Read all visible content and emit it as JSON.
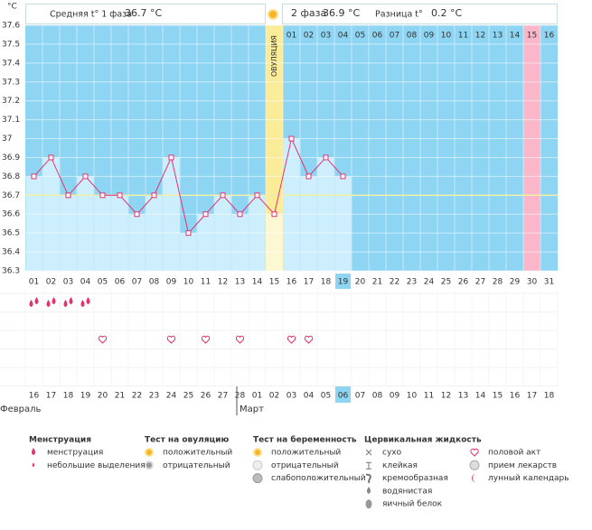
{
  "header": {
    "unit": "°C",
    "phase1_label": "Средняя t° 1 фаза",
    "phase1_value": "36.7 °C",
    "phase2_label": "2 фаза",
    "phase2_value": "36.9 °C",
    "diff_label": "Разница t°",
    "diff_value": "0.2 °C"
  },
  "chart_data": {
    "type": "line",
    "categories": [
      "01",
      "02",
      "03",
      "04",
      "05",
      "06",
      "07",
      "08",
      "09",
      "10",
      "11",
      "12",
      "13",
      "14",
      "15",
      "16",
      "17",
      "18",
      "19",
      "20",
      "21",
      "22",
      "23",
      "24",
      "25",
      "26",
      "27",
      "28",
      "29",
      "30",
      "31"
    ],
    "values": [
      36.8,
      36.9,
      36.7,
      36.8,
      36.7,
      36.7,
      36.6,
      36.7,
      36.9,
      36.5,
      36.6,
      36.7,
      36.6,
      36.7,
      36.6,
      37.0,
      36.8,
      36.9,
      36.8,
      null,
      null,
      null,
      null,
      null,
      null,
      null,
      null,
      null,
      null,
      null,
      null
    ],
    "color": "#e2336f",
    "bar_color": "#cdeefc",
    "background": "#8ed5f3",
    "ylim": [
      36.3,
      37.6
    ],
    "yticks": [
      36.3,
      36.4,
      36.5,
      36.6,
      36.7,
      36.8,
      36.9,
      37,
      37.1,
      37.2,
      37.3,
      37.4,
      37.5,
      37.6
    ],
    "grid": true,
    "cover_line": 36.7,
    "cover_line_color": "#f2f0a6",
    "ovulation": {
      "label": "ОВУЛЯЦИЯ",
      "day": "15",
      "color": "#fbec9a",
      "bar_color": "#fdf7d2"
    },
    "current_day": "19",
    "current_color": "#8ed5f3",
    "marked_day": "30",
    "marked_color": "#f9b7c9",
    "cycle_days": [
      "01",
      "02",
      "03",
      "04",
      "05",
      "06",
      "07",
      "08",
      "09",
      "10",
      "11",
      "12",
      "13",
      "14",
      "15",
      "16"
    ],
    "cycle_days_start": "16"
  },
  "symbols": {
    "menstruation": [
      "01",
      "02",
      "03",
      "04"
    ],
    "intercourse": [
      "05",
      "09",
      "11",
      "13",
      "16",
      "17"
    ]
  },
  "dates": {
    "labels": [
      "16",
      "17",
      "18",
      "19",
      "20",
      "21",
      "22",
      "23",
      "24",
      "25",
      "26",
      "27",
      "28",
      "01",
      "02",
      "03",
      "04",
      "05",
      "06",
      "07",
      "08",
      "09",
      "10",
      "11",
      "12",
      "13",
      "14",
      "15",
      "16",
      "17",
      "18"
    ],
    "red": [
      true,
      false,
      false,
      false,
      false,
      false,
      true,
      true,
      false,
      false,
      false,
      false,
      false,
      true,
      true,
      false,
      false,
      false,
      false,
      false,
      true,
      true,
      false,
      false,
      false,
      false,
      false,
      true,
      true,
      false,
      false
    ],
    "months": [
      "Февраль",
      "Март"
    ]
  },
  "legend": [
    {
      "title": "Менструация",
      "items": [
        {
          "label": "менструация",
          "icon": "drop"
        },
        {
          "label": "небольшие выделения",
          "icon": "drop-small"
        }
      ]
    },
    {
      "title": "Тест на овуляцию",
      "items": [
        {
          "label": "положительный",
          "icon": "sun-orange"
        },
        {
          "label": "отрицательный",
          "icon": "sun-gray"
        }
      ]
    },
    {
      "title": "Тест на беременность",
      "items": [
        {
          "label": "положительный",
          "icon": "sun-orange"
        },
        {
          "label": "отрицательный",
          "icon": "circle-light"
        },
        {
          "label": "слабоположительный",
          "icon": "circle-gray"
        }
      ]
    },
    {
      "title": "Цервикальная жидкость",
      "items": [
        {
          "label": "сухо",
          "icon": "cross"
        },
        {
          "label": "клейкая",
          "icon": "tee"
        },
        {
          "label": "кремообразная",
          "icon": "swirl"
        },
        {
          "label": "водянистая",
          "icon": "drop-gray"
        },
        {
          "label": "яичный белок",
          "icon": "egg"
        }
      ]
    },
    {
      "items": [
        {
          "label": "половой акт",
          "icon": "heart"
        },
        {
          "label": "прием лекарств",
          "icon": "pill"
        },
        {
          "label": "лунный календарь",
          "icon": "moon"
        }
      ]
    }
  ]
}
